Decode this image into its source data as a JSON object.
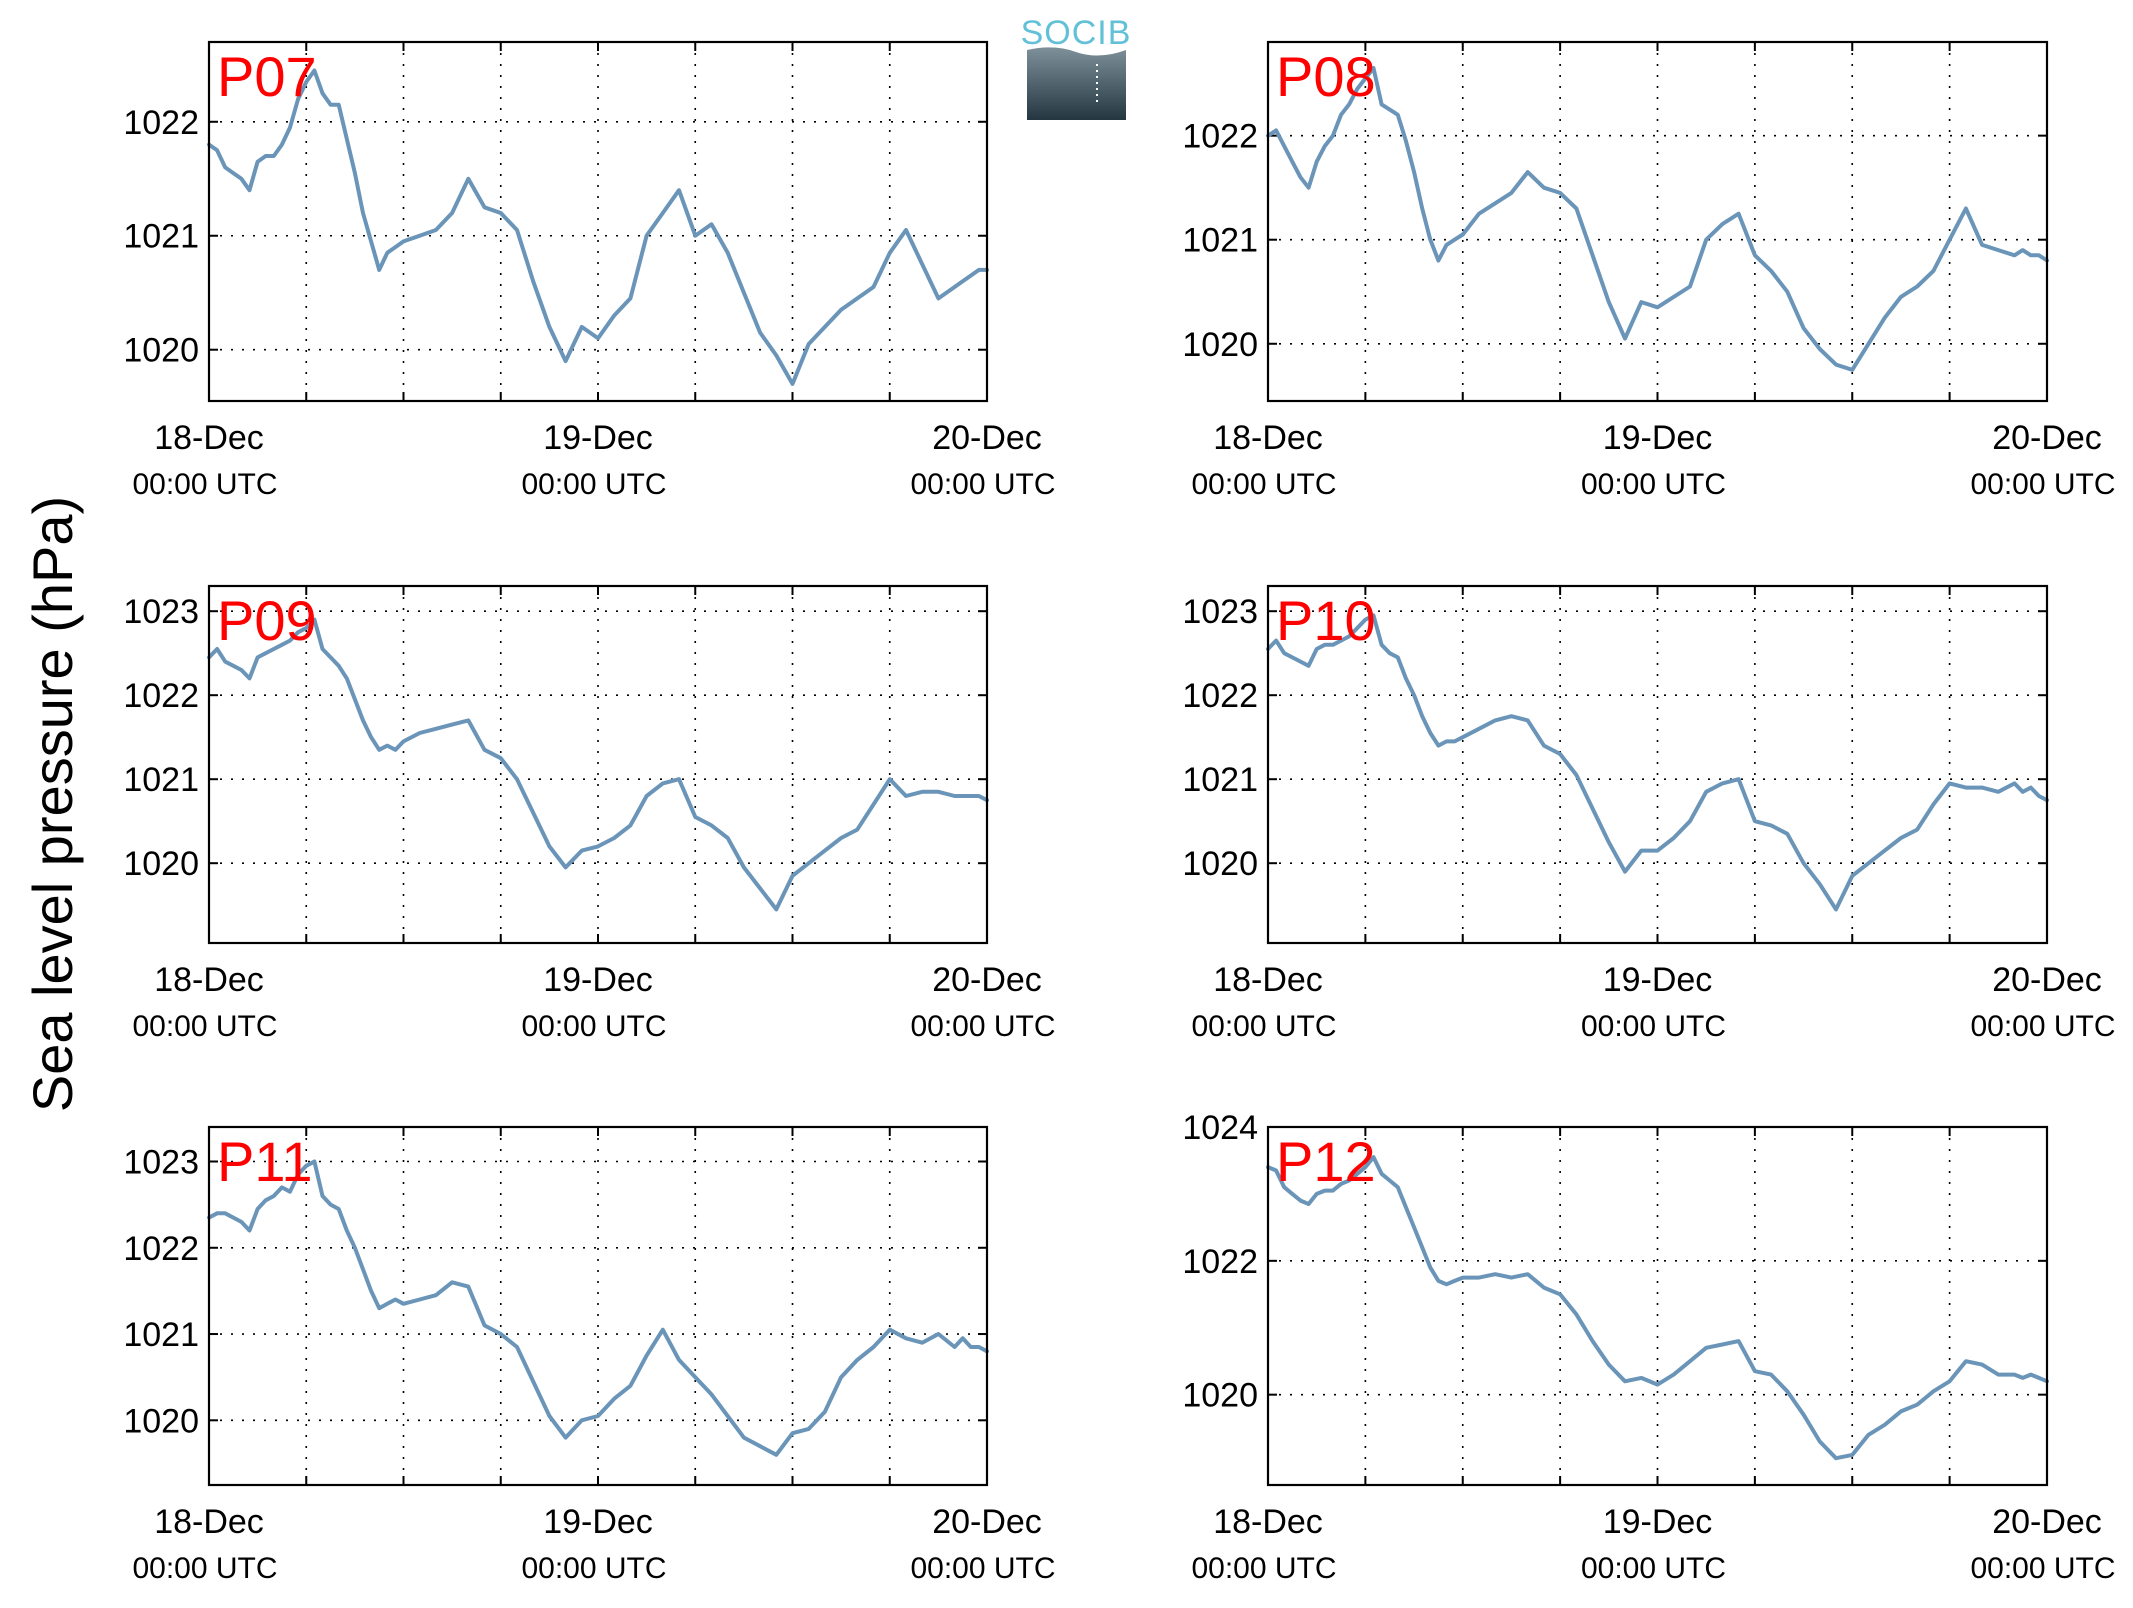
{
  "figure": {
    "ylabel": "Sea level pressure (hPa)",
    "logo_text": "SOCIB"
  },
  "colors": {
    "line": "#6a95b8",
    "panel_label": "#ff0000",
    "logo_text": "#62c0d8",
    "logo_top": "#7e9099",
    "logo_bottom": "#243640"
  },
  "chart_data": [
    {
      "type": "line",
      "name": "P07",
      "xticks": [
        [
          "18-Dec",
          "00:00 UTC"
        ],
        [
          "19-Dec",
          "00:00 UTC"
        ],
        [
          "20-Dec",
          "00:00 UTC"
        ]
      ],
      "xlim": [
        0,
        48
      ],
      "ylim": [
        1019.55,
        1022.7
      ],
      "yticks": [
        1020,
        1021,
        1022
      ],
      "grid": true,
      "x": [
        0,
        0.5,
        1,
        1.5,
        2,
        2.5,
        3,
        3.5,
        4,
        4.5,
        5,
        5.5,
        6,
        6.5,
        7,
        7.5,
        8,
        8.5,
        9,
        9.5,
        10,
        10.5,
        11,
        11.5,
        12,
        13,
        14,
        15,
        16,
        17,
        18,
        19,
        20,
        21,
        22,
        23,
        24,
        25,
        26,
        27,
        28,
        29,
        30,
        31,
        32,
        33,
        34,
        35,
        36,
        37,
        38,
        39,
        40,
        41,
        42,
        43,
        44,
        45,
        46,
        46.5,
        47,
        47.5,
        48
      ],
      "y": [
        1021.8,
        1021.75,
        1021.6,
        1021.55,
        1021.5,
        1021.4,
        1021.65,
        1021.7,
        1021.7,
        1021.8,
        1021.95,
        1022.2,
        1022.35,
        1022.45,
        1022.25,
        1022.15,
        1022.15,
        1021.85,
        1021.55,
        1021.2,
        1020.95,
        1020.7,
        1020.85,
        1020.9,
        1020.95,
        1021.0,
        1021.05,
        1021.2,
        1021.5,
        1021.25,
        1021.2,
        1021.05,
        1020.6,
        1020.2,
        1019.9,
        1020.2,
        1020.1,
        1020.3,
        1020.45,
        1021.0,
        1021.2,
        1021.4,
        1021.0,
        1021.1,
        1020.85,
        1020.5,
        1020.15,
        1019.95,
        1019.7,
        1020.05,
        1020.2,
        1020.35,
        1020.45,
        1020.55,
        1020.85,
        1021.05,
        1020.75,
        1020.45,
        1020.55,
        1020.6,
        1020.65,
        1020.7,
        1020.7
      ]
    },
    {
      "type": "line",
      "name": "P08",
      "xticks": [
        [
          "18-Dec",
          "00:00 UTC"
        ],
        [
          "19-Dec",
          "00:00 UTC"
        ],
        [
          "20-Dec",
          "00:00 UTC"
        ]
      ],
      "xlim": [
        0,
        48
      ],
      "ylim": [
        1019.45,
        1022.9
      ],
      "yticks": [
        1020,
        1021,
        1022
      ],
      "grid": true,
      "x": [
        0,
        0.5,
        1,
        1.5,
        2,
        2.5,
        3,
        3.5,
        4,
        4.5,
        5,
        5.5,
        6,
        6.5,
        7,
        7.5,
        8,
        8.5,
        9,
        9.5,
        10,
        10.5,
        11,
        11.5,
        12,
        13,
        14,
        15,
        16,
        17,
        18,
        19,
        20,
        21,
        22,
        23,
        24,
        25,
        26,
        27,
        28,
        29,
        30,
        31,
        32,
        33,
        34,
        35,
        36,
        37,
        38,
        39,
        40,
        41,
        42,
        43,
        44,
        45,
        46,
        46.5,
        47,
        47.5,
        48
      ],
      "y": [
        1022.0,
        1022.05,
        1021.9,
        1021.75,
        1021.6,
        1021.5,
        1021.75,
        1021.9,
        1022.0,
        1022.2,
        1022.3,
        1022.45,
        1022.55,
        1022.65,
        1022.3,
        1022.25,
        1022.2,
        1021.95,
        1021.65,
        1021.3,
        1021.0,
        1020.8,
        1020.95,
        1021.0,
        1021.05,
        1021.25,
        1021.35,
        1021.45,
        1021.65,
        1021.5,
        1021.45,
        1021.3,
        1020.85,
        1020.4,
        1020.05,
        1020.4,
        1020.35,
        1020.45,
        1020.55,
        1021.0,
        1021.15,
        1021.25,
        1020.85,
        1020.7,
        1020.5,
        1020.15,
        1019.95,
        1019.8,
        1019.75,
        1020.0,
        1020.25,
        1020.45,
        1020.55,
        1020.7,
        1021.0,
        1021.3,
        1020.95,
        1020.9,
        1020.85,
        1020.9,
        1020.85,
        1020.85,
        1020.8
      ]
    },
    {
      "type": "line",
      "name": "P09",
      "xticks": [
        [
          "18-Dec",
          "00:00 UTC"
        ],
        [
          "19-Dec",
          "00:00 UTC"
        ],
        [
          "20-Dec",
          "00:00 UTC"
        ]
      ],
      "xlim": [
        0,
        48
      ],
      "ylim": [
        1019.05,
        1023.3
      ],
      "yticks": [
        1020,
        1021,
        1022,
        1023
      ],
      "grid": true,
      "x": [
        0,
        0.5,
        1,
        1.5,
        2,
        2.5,
        3,
        3.5,
        4,
        4.5,
        5,
        5.5,
        6,
        6.5,
        7,
        7.5,
        8,
        8.5,
        9,
        9.5,
        10,
        10.5,
        11,
        11.5,
        12,
        13,
        14,
        15,
        16,
        17,
        18,
        19,
        20,
        21,
        22,
        23,
        24,
        25,
        26,
        27,
        28,
        29,
        30,
        31,
        32,
        33,
        34,
        35,
        36,
        37,
        38,
        39,
        40,
        41,
        42,
        43,
        44,
        45,
        46,
        46.5,
        47,
        47.5,
        48
      ],
      "y": [
        1022.45,
        1022.55,
        1022.4,
        1022.35,
        1022.3,
        1022.2,
        1022.45,
        1022.5,
        1022.55,
        1022.6,
        1022.65,
        1022.75,
        1022.8,
        1022.9,
        1022.55,
        1022.45,
        1022.35,
        1022.2,
        1021.95,
        1021.7,
        1021.5,
        1021.35,
        1021.4,
        1021.35,
        1021.45,
        1021.55,
        1021.6,
        1021.65,
        1021.7,
        1021.35,
        1021.25,
        1021.0,
        1020.6,
        1020.2,
        1019.95,
        1020.15,
        1020.2,
        1020.3,
        1020.45,
        1020.8,
        1020.95,
        1021.0,
        1020.55,
        1020.45,
        1020.3,
        1019.95,
        1019.7,
        1019.45,
        1019.85,
        1020.0,
        1020.15,
        1020.3,
        1020.4,
        1020.7,
        1021.0,
        1020.8,
        1020.85,
        1020.85,
        1020.8,
        1020.8,
        1020.8,
        1020.8,
        1020.75
      ]
    },
    {
      "type": "line",
      "name": "P10",
      "xticks": [
        [
          "18-Dec",
          "00:00 UTC"
        ],
        [
          "19-Dec",
          "00:00 UTC"
        ],
        [
          "20-Dec",
          "00:00 UTC"
        ]
      ],
      "xlim": [
        0,
        48
      ],
      "ylim": [
        1019.05,
        1023.3
      ],
      "yticks": [
        1020,
        1021,
        1022,
        1023
      ],
      "grid": true,
      "x": [
        0,
        0.5,
        1,
        1.5,
        2,
        2.5,
        3,
        3.5,
        4,
        4.5,
        5,
        5.5,
        6,
        6.5,
        7,
        7.5,
        8,
        8.5,
        9,
        9.5,
        10,
        10.5,
        11,
        11.5,
        12,
        13,
        14,
        15,
        16,
        17,
        18,
        19,
        20,
        21,
        22,
        23,
        24,
        25,
        26,
        27,
        28,
        29,
        30,
        31,
        32,
        33,
        34,
        35,
        36,
        37,
        38,
        39,
        40,
        41,
        42,
        43,
        44,
        45,
        46,
        46.5,
        47,
        47.5,
        48
      ],
      "y": [
        1022.55,
        1022.65,
        1022.5,
        1022.45,
        1022.4,
        1022.35,
        1022.55,
        1022.6,
        1022.6,
        1022.65,
        1022.7,
        1022.8,
        1022.9,
        1022.95,
        1022.6,
        1022.5,
        1022.45,
        1022.2,
        1022.0,
        1021.75,
        1021.55,
        1021.4,
        1021.45,
        1021.45,
        1021.5,
        1021.6,
        1021.7,
        1021.75,
        1021.7,
        1021.4,
        1021.3,
        1021.05,
        1020.65,
        1020.25,
        1019.9,
        1020.15,
        1020.15,
        1020.3,
        1020.5,
        1020.85,
        1020.95,
        1021.0,
        1020.5,
        1020.45,
        1020.35,
        1020.0,
        1019.75,
        1019.45,
        1019.85,
        1020.0,
        1020.15,
        1020.3,
        1020.4,
        1020.7,
        1020.95,
        1020.9,
        1020.9,
        1020.85,
        1020.95,
        1020.85,
        1020.9,
        1020.8,
        1020.75
      ]
    },
    {
      "type": "line",
      "name": "P11",
      "xticks": [
        [
          "18-Dec",
          "00:00 UTC"
        ],
        [
          "19-Dec",
          "00:00 UTC"
        ],
        [
          "20-Dec",
          "00:00 UTC"
        ]
      ],
      "xlim": [
        0,
        48
      ],
      "ylim": [
        1019.25,
        1023.4
      ],
      "yticks": [
        1020,
        1021,
        1022,
        1023
      ],
      "grid": true,
      "x": [
        0,
        0.5,
        1,
        1.5,
        2,
        2.5,
        3,
        3.5,
        4,
        4.5,
        5,
        5.5,
        6,
        6.5,
        7,
        7.5,
        8,
        8.5,
        9,
        9.5,
        10,
        10.5,
        11,
        11.5,
        12,
        13,
        14,
        15,
        16,
        17,
        18,
        19,
        20,
        21,
        22,
        23,
        24,
        25,
        26,
        27,
        28,
        29,
        30,
        31,
        32,
        33,
        34,
        35,
        36,
        37,
        38,
        39,
        40,
        41,
        42,
        43,
        44,
        45,
        46,
        46.5,
        47,
        47.5,
        48
      ],
      "y": [
        1022.35,
        1022.4,
        1022.4,
        1022.35,
        1022.3,
        1022.2,
        1022.45,
        1022.55,
        1022.6,
        1022.7,
        1022.65,
        1022.85,
        1022.95,
        1023.0,
        1022.6,
        1022.5,
        1022.45,
        1022.2,
        1022.0,
        1021.75,
        1021.5,
        1021.3,
        1021.35,
        1021.4,
        1021.35,
        1021.4,
        1021.45,
        1021.6,
        1021.55,
        1021.1,
        1021.0,
        1020.85,
        1020.45,
        1020.05,
        1019.8,
        1020.0,
        1020.05,
        1020.25,
        1020.4,
        1020.75,
        1021.05,
        1020.7,
        1020.5,
        1020.3,
        1020.05,
        1019.8,
        1019.7,
        1019.6,
        1019.85,
        1019.9,
        1020.1,
        1020.5,
        1020.7,
        1020.85,
        1021.05,
        1020.95,
        1020.9,
        1021.0,
        1020.85,
        1020.95,
        1020.85,
        1020.85,
        1020.8
      ]
    },
    {
      "type": "line",
      "name": "P12",
      "xticks": [
        [
          "18-Dec",
          "00:00 UTC"
        ],
        [
          "19-Dec",
          "00:00 UTC"
        ],
        [
          "20-Dec",
          "00:00 UTC"
        ]
      ],
      "xlim": [
        0,
        48
      ],
      "ylim": [
        1018.65,
        1024.0
      ],
      "yticks": [
        1020,
        1022,
        1024
      ],
      "grid": true,
      "x": [
        0,
        0.5,
        1,
        1.5,
        2,
        2.5,
        3,
        3.5,
        4,
        4.5,
        5,
        5.5,
        6,
        6.5,
        7,
        7.5,
        8,
        8.5,
        9,
        9.5,
        10,
        10.5,
        11,
        11.5,
        12,
        13,
        14,
        15,
        16,
        17,
        18,
        19,
        20,
        21,
        22,
        23,
        24,
        25,
        26,
        27,
        28,
        29,
        30,
        31,
        32,
        33,
        34,
        35,
        36,
        37,
        38,
        39,
        40,
        41,
        42,
        43,
        44,
        45,
        46,
        46.5,
        47,
        47.5,
        48
      ],
      "y": [
        1023.4,
        1023.35,
        1023.1,
        1023.0,
        1022.9,
        1022.85,
        1023.0,
        1023.05,
        1023.05,
        1023.15,
        1023.2,
        1023.3,
        1023.4,
        1023.55,
        1023.3,
        1023.2,
        1023.1,
        1022.8,
        1022.5,
        1022.2,
        1021.9,
        1021.7,
        1021.65,
        1021.7,
        1021.75,
        1021.75,
        1021.8,
        1021.75,
        1021.8,
        1021.6,
        1021.5,
        1021.2,
        1020.8,
        1020.45,
        1020.2,
        1020.25,
        1020.15,
        1020.3,
        1020.5,
        1020.7,
        1020.75,
        1020.8,
        1020.35,
        1020.3,
        1020.05,
        1019.7,
        1019.3,
        1019.05,
        1019.1,
        1019.4,
        1019.55,
        1019.75,
        1019.85,
        1020.05,
        1020.2,
        1020.5,
        1020.45,
        1020.3,
        1020.3,
        1020.25,
        1020.3,
        1020.25,
        1020.2
      ]
    }
  ]
}
